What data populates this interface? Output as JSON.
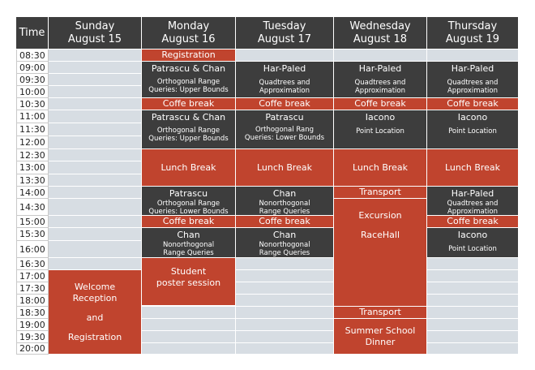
{
  "header": {
    "time": "Time",
    "days": [
      {
        "name": "Sunday",
        "date": "August 15"
      },
      {
        "name": "Monday",
        "date": "August 16"
      },
      {
        "name": "Tuesday",
        "date": "August 17"
      },
      {
        "name": "Wednesday",
        "date": "August 18"
      },
      {
        "name": "Thursday",
        "date": "August 19"
      }
    ]
  },
  "times": [
    "08:30",
    "09:00",
    "09:30",
    "10:00",
    "10:30",
    "11:00",
    "11:30",
    "12:00",
    "12:30",
    "13:00",
    "13:30",
    "14:00",
    "14:30",
    "15:00",
    "15:30",
    "16:00",
    "16:30",
    "17:00",
    "17:30",
    "18:00",
    "18:30",
    "19:00",
    "19:30",
    "20:00"
  ],
  "colors": {
    "dark": "#3d3d3d",
    "red": "#c0442e",
    "empty": "#d7dde3"
  },
  "events": {
    "sun_welcome": {
      "l1": "Welcome",
      "l2": "Reception",
      "l3": "and",
      "l4": "Registration"
    },
    "mon_registration": {
      "title": "Registration"
    },
    "mon_pc1": {
      "title": "Patrascu & Chan",
      "sub1": "Orthogonal Range",
      "sub2": "Queries: Upper Bounds"
    },
    "mon_coffee1": {
      "title": "Coffe break"
    },
    "mon_pc2": {
      "title": "Patrascu & Chan",
      "sub1": "Orthogonal Range",
      "sub2": "Queries: Upper Bounds"
    },
    "mon_lunch": {
      "title": "Lunch Break"
    },
    "mon_patrascu": {
      "title": "Patrascu",
      "sub1": "Orthogonal Range",
      "sub2": "Queries: Lower Bounds"
    },
    "mon_coffee2": {
      "title": "Coffe break"
    },
    "mon_chan": {
      "title": "Chan",
      "sub1": "Nonorthogonal",
      "sub2": "Range Queries"
    },
    "mon_poster": {
      "l1": "Student",
      "l2": "poster session"
    },
    "tue_harpaled": {
      "title": "Har-Paled",
      "sub1": "Quadtrees and",
      "sub2": "Approximation"
    },
    "tue_coffee1": {
      "title": "Coffe break"
    },
    "tue_patrascu": {
      "title": "Patrascu",
      "sub1": "Orthogonal Rang",
      "sub2": "Queries: Lower Bounds"
    },
    "tue_lunch": {
      "title": "Lunch Break"
    },
    "tue_chan1": {
      "title": "Chan",
      "sub1": "Nonorthogonal",
      "sub2": "Range Queries"
    },
    "tue_coffee2": {
      "title": "Coffe break"
    },
    "tue_chan2": {
      "title": "Chan",
      "sub1": "Nonorthogonal",
      "sub2": "Range Queries"
    },
    "wed_harpaled": {
      "title": "Har-Paled",
      "sub1": "Quadtrees and",
      "sub2": "Approximation"
    },
    "wed_coffee": {
      "title": "Coffe break"
    },
    "wed_iacono": {
      "title": "Iacono",
      "sub1": "Point Location"
    },
    "wed_lunch": {
      "title": "Lunch Break"
    },
    "wed_transport1": {
      "title": "Transport"
    },
    "wed_excursion": {
      "l1": "Excursion",
      "l2": "RaceHall"
    },
    "wed_transport2": {
      "title": "Transport"
    },
    "wed_dinner": {
      "l1": "Summer School",
      "l2": "Dinner"
    },
    "thu_harpaled1": {
      "title": "Har-Paled",
      "sub1": "Quadtrees and",
      "sub2": "Approximation"
    },
    "thu_coffee1": {
      "title": "Coffe break"
    },
    "thu_iacono1": {
      "title": "Iacono",
      "sub1": "Point Location"
    },
    "thu_lunch": {
      "title": "Lunch Break"
    },
    "thu_harpaled2": {
      "title": "Har-Paled",
      "sub1": "Quadtrees and",
      "sub2": "Approximation"
    },
    "thu_coffee2": {
      "title": "Coffe break"
    },
    "thu_iacono2": {
      "title": "Iacono",
      "sub1": "Point Location"
    }
  }
}
